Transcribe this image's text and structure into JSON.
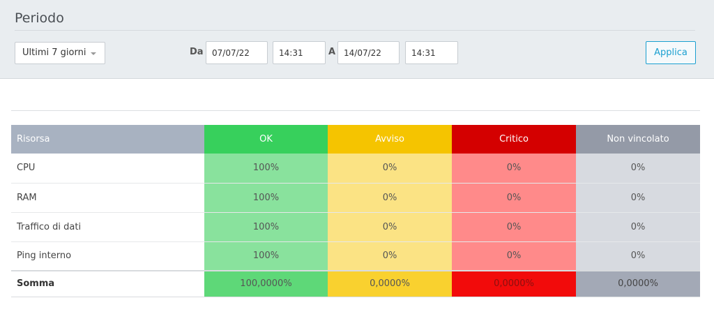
{
  "period": {
    "title": "Periodo",
    "preset": "Ultimi 7 giorni",
    "from_label": "Da",
    "from_date": "07/07/22",
    "from_time": "14:31",
    "to_label": "A",
    "to_date": "14/07/22",
    "to_time": "14:31",
    "apply_label": "Applica"
  },
  "table": {
    "headers": [
      "Risorsa",
      "OK",
      "Avviso",
      "Critico",
      "Non vincolato"
    ],
    "rows": [
      {
        "resource": "CPU",
        "ok": "100%",
        "warning": "0%",
        "critical": "0%",
        "unbound": "0%"
      },
      {
        "resource": "RAM",
        "ok": "100%",
        "warning": "0%",
        "critical": "0%",
        "unbound": "0%"
      },
      {
        "resource": "Traffico di dati",
        "ok": "100%",
        "warning": "0%",
        "critical": "0%",
        "unbound": "0%"
      },
      {
        "resource": "Ping interno",
        "ok": "100%",
        "warning": "0%",
        "critical": "0%",
        "unbound": "0%"
      }
    ],
    "total": {
      "resource": "Somma",
      "ok": "100,0000%",
      "warning": "0,0000%",
      "critical": "0,0000%",
      "unbound": "0,0000%"
    }
  },
  "colors": {
    "ok": "#37d05c",
    "warning": "#f5c400",
    "critical": "#d40000",
    "unbound": "#949aa7",
    "accent": "#1a9fd0"
  }
}
